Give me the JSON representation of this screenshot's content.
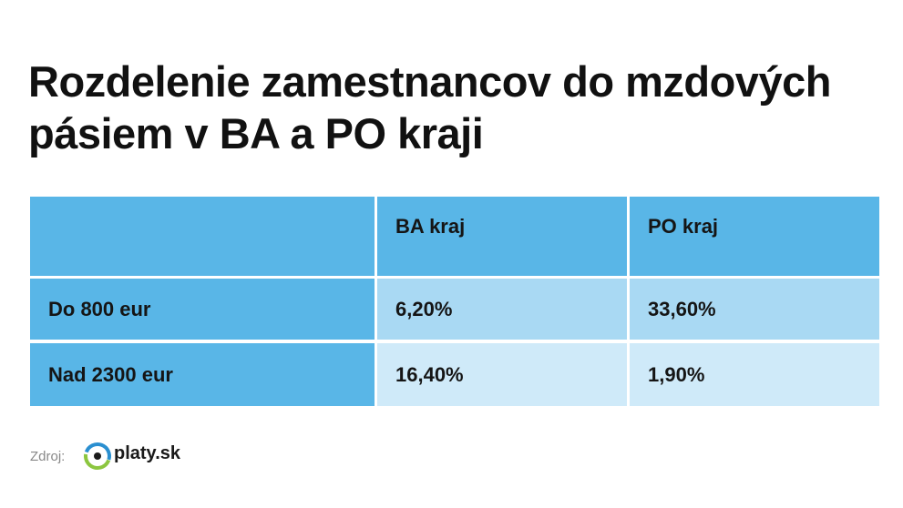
{
  "header": {
    "title_lines": [
      "Rozdelenie zamestnancov do mzdových",
      "pásiem v BA a PO kraji"
    ]
  },
  "table": {
    "columns": [
      "BA kraj",
      "PO kraj"
    ],
    "rows": [
      [
        "Do 800 eur",
        "6,20%",
        "33,60%"
      ],
      [
        "Nad 2300 eur",
        "16,40%",
        "1,90%"
      ]
    ]
  },
  "footer": {
    "source_label": "Zdroj:",
    "logo_text": "platy.sk"
  }
}
